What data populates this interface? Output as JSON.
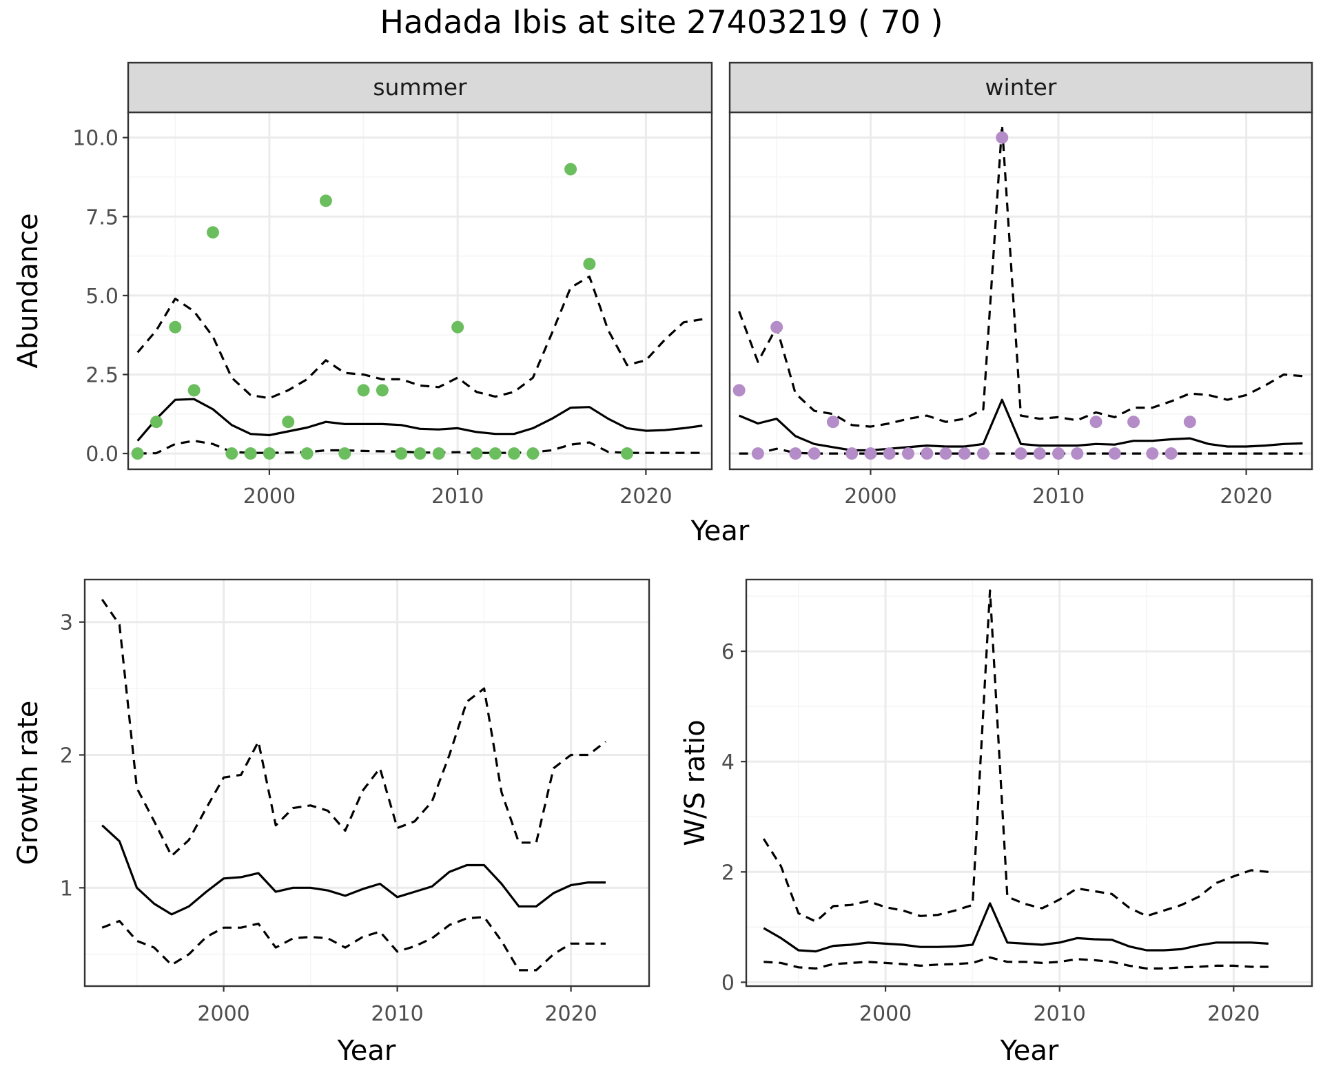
{
  "title": "Hadada Ibis at site 27403219 ( 70 )",
  "colors": {
    "summer_points": "#6BBE5D",
    "winter_points": "#B48CC8",
    "line": "#000000",
    "grid_major": "#EBEBEB",
    "grid_minor": "#F5F5F5",
    "strip_fill": "#D9D9D9",
    "panel_border": "#333333"
  },
  "chart_data": [
    {
      "type": "line",
      "panel": "summer",
      "strip_label": "summer",
      "xlabel": "Year",
      "ylabel": "Abundance",
      "xlim": [
        1992.5,
        2023.5
      ],
      "ylim": [
        -0.5,
        10.8
      ],
      "xticks": [
        2000,
        2010,
        2020
      ],
      "yticks": [
        0,
        2.5,
        5,
        7.5,
        10
      ],
      "ytick_labels": [
        "0.0",
        "2.5",
        "5.0",
        "7.5",
        "10.0"
      ],
      "grid": true,
      "line_styles": [
        "solid",
        "dashed",
        "dashed"
      ],
      "series": [
        {
          "style": "solid",
          "x": [
            1993,
            1994,
            1995,
            1996,
            1997,
            1998,
            1999,
            2000,
            2001,
            2002,
            2003,
            2004,
            2005,
            2006,
            2007,
            2008,
            2009,
            2010,
            2011,
            2012,
            2013,
            2014,
            2015,
            2016,
            2017,
            2018,
            2019,
            2020,
            2021,
            2022,
            2023
          ],
          "values": [
            0.4,
            1.1,
            1.7,
            1.72,
            1.4,
            0.9,
            0.62,
            0.58,
            0.7,
            0.82,
            1.0,
            0.93,
            0.93,
            0.93,
            0.9,
            0.78,
            0.76,
            0.8,
            0.68,
            0.62,
            0.62,
            0.8,
            1.1,
            1.45,
            1.47,
            1.1,
            0.8,
            0.72,
            0.74,
            0.8,
            0.88
          ]
        },
        {
          "style": "dashed",
          "x": [
            1993,
            1994,
            1995,
            1996,
            1997,
            1998,
            1999,
            2000,
            2001,
            2002,
            2003,
            2004,
            2005,
            2006,
            2007,
            2008,
            2009,
            2010,
            2011,
            2012,
            2013,
            2014,
            2015,
            2016,
            2017,
            2018,
            2019,
            2020,
            2021,
            2022,
            2023
          ],
          "values": [
            3.2,
            3.9,
            4.9,
            4.5,
            3.7,
            2.4,
            1.85,
            1.75,
            2.0,
            2.35,
            2.95,
            2.55,
            2.5,
            2.35,
            2.35,
            2.15,
            2.1,
            2.4,
            1.95,
            1.8,
            1.95,
            2.4,
            3.8,
            5.25,
            5.6,
            3.9,
            2.8,
            2.95,
            3.6,
            4.15,
            4.25
          ]
        },
        {
          "style": "dashed",
          "x": [
            1993,
            1994,
            1995,
            1996,
            1997,
            1998,
            1999,
            2000,
            2001,
            2002,
            2003,
            2004,
            2005,
            2006,
            2007,
            2008,
            2009,
            2010,
            2011,
            2012,
            2013,
            2014,
            2015,
            2016,
            2017,
            2018,
            2019,
            2020,
            2021,
            2022,
            2023
          ],
          "values": [
            0,
            0.01,
            0.3,
            0.4,
            0.3,
            0.05,
            0.02,
            0.02,
            0.03,
            0.04,
            0.1,
            0.1,
            0.08,
            0.07,
            0.06,
            0.03,
            0.03,
            0.04,
            0.02,
            0.02,
            0.02,
            0.04,
            0.1,
            0.28,
            0.35,
            0.05,
            0.02,
            0.02,
            0.02,
            0.02,
            0.02
          ]
        }
      ],
      "points": {
        "x": [
          1993,
          1994,
          1995,
          1996,
          1997,
          1998,
          1999,
          2000,
          2001,
          2002,
          2003,
          2004,
          2005,
          2006,
          2007,
          2008,
          2009,
          2010,
          2011,
          2012,
          2013,
          2014,
          2016,
          2017,
          2019
        ],
        "y": [
          0,
          1,
          4,
          2,
          7,
          0,
          0,
          0,
          1,
          0,
          8,
          0,
          2,
          2,
          0,
          0,
          0,
          4,
          0,
          0,
          0,
          0,
          9,
          6,
          0
        ]
      }
    },
    {
      "type": "line",
      "panel": "winter",
      "strip_label": "winter",
      "xlabel": "Year",
      "ylabel": "",
      "xlim": [
        1992.5,
        2023.5
      ],
      "ylim": [
        -0.5,
        10.8
      ],
      "xticks": [
        2000,
        2010,
        2020
      ],
      "yticks": [
        0,
        2.5,
        5,
        7.5,
        10
      ],
      "grid": true,
      "line_styles": [
        "solid",
        "dashed",
        "dashed"
      ],
      "series": [
        {
          "style": "solid",
          "x": [
            1993,
            1994,
            1995,
            1996,
            1997,
            1998,
            1999,
            2000,
            2001,
            2002,
            2003,
            2004,
            2005,
            2006,
            2007,
            2008,
            2009,
            2010,
            2011,
            2012,
            2013,
            2014,
            2015,
            2016,
            2017,
            2018,
            2019,
            2020,
            2021,
            2022,
            2023
          ],
          "values": [
            1.2,
            0.95,
            1.1,
            0.55,
            0.3,
            0.2,
            0.1,
            0.1,
            0.15,
            0.2,
            0.25,
            0.22,
            0.22,
            0.3,
            1.7,
            0.3,
            0.25,
            0.25,
            0.25,
            0.3,
            0.28,
            0.4,
            0.4,
            0.45,
            0.48,
            0.3,
            0.22,
            0.22,
            0.25,
            0.3,
            0.32
          ]
        },
        {
          "style": "dashed",
          "x": [
            1993,
            1994,
            1995,
            1996,
            1997,
            1998,
            1999,
            2000,
            2001,
            2002,
            2003,
            2004,
            2005,
            2006,
            2007,
            2008,
            2009,
            2010,
            2011,
            2012,
            2013,
            2014,
            2015,
            2016,
            2017,
            2018,
            2019,
            2020,
            2021,
            2022,
            2023
          ],
          "values": [
            4.5,
            2.9,
            4.0,
            1.9,
            1.35,
            1.25,
            0.9,
            0.85,
            0.95,
            1.1,
            1.2,
            1.0,
            1.1,
            1.4,
            10.4,
            1.2,
            1.1,
            1.15,
            1.05,
            1.3,
            1.15,
            1.45,
            1.45,
            1.65,
            1.9,
            1.85,
            1.7,
            1.85,
            2.15,
            2.5,
            2.45
          ]
        },
        {
          "style": "dashed",
          "x": [
            1993,
            1994,
            1995,
            1996,
            1997,
            1998,
            1999,
            2000,
            2001,
            2002,
            2003,
            2004,
            2005,
            2006,
            2007,
            2008,
            2009,
            2010,
            2011,
            2012,
            2013,
            2014,
            2015,
            2016,
            2017,
            2018,
            2019,
            2020,
            2021,
            2022,
            2023
          ],
          "values": [
            0,
            0,
            0.15,
            0.02,
            0,
            0,
            0,
            0,
            0,
            0,
            0,
            0,
            0,
            0,
            0,
            0,
            0,
            0,
            0,
            0,
            0,
            0,
            0,
            0,
            0,
            0,
            0,
            0,
            0,
            0,
            0
          ]
        }
      ],
      "points": {
        "x": [
          1993,
          1994,
          1995,
          1996,
          1997,
          1998,
          1999,
          2000,
          2001,
          2002,
          2003,
          2004,
          2005,
          2006,
          2007,
          2008,
          2009,
          2010,
          2011,
          2012,
          2013,
          2014,
          2015,
          2016,
          2017
        ],
        "y": [
          2,
          0,
          4,
          0,
          0,
          1,
          0,
          0,
          0,
          0,
          0,
          0,
          0,
          0,
          10,
          0,
          0,
          0,
          0,
          1,
          0,
          1,
          0,
          0,
          1
        ]
      }
    },
    {
      "type": "line",
      "panel": "growth",
      "xlabel": "Year",
      "ylabel": "Growth rate",
      "xlim": [
        1992.0,
        2024.5
      ],
      "ylim": [
        0.26,
        3.32
      ],
      "xticks": [
        2000,
        2010,
        2020
      ],
      "yticks": [
        1,
        2,
        3
      ],
      "ytick_labels": [
        "1",
        "2",
        "3"
      ],
      "grid": true,
      "line_styles": [
        "solid",
        "dashed",
        "dashed"
      ],
      "series": [
        {
          "style": "solid",
          "x": [
            1993,
            1994,
            1995,
            1996,
            1997,
            1998,
            1999,
            2000,
            2001,
            2002,
            2003,
            2004,
            2005,
            2006,
            2007,
            2008,
            2009,
            2010,
            2011,
            2012,
            2013,
            2014,
            2015,
            2016,
            2017,
            2018,
            2019,
            2020,
            2021,
            2022
          ],
          "values": [
            1.47,
            1.35,
            1.0,
            0.88,
            0.8,
            0.86,
            0.97,
            1.07,
            1.08,
            1.11,
            0.97,
            1.0,
            1.0,
            0.98,
            0.94,
            0.99,
            1.03,
            0.93,
            0.97,
            1.01,
            1.12,
            1.17,
            1.17,
            1.03,
            0.86,
            0.86,
            0.96,
            1.02,
            1.04,
            1.04
          ]
        },
        {
          "style": "dashed",
          "x": [
            1993,
            1994,
            1995,
            1996,
            1997,
            1998,
            1999,
            2000,
            2001,
            2002,
            2003,
            2004,
            2005,
            2006,
            2007,
            2008,
            2009,
            2010,
            2011,
            2012,
            2013,
            2014,
            2015,
            2016,
            2017,
            2018,
            2019,
            2020,
            2021,
            2022
          ],
          "values": [
            3.17,
            2.98,
            1.75,
            1.5,
            1.24,
            1.36,
            1.6,
            1.83,
            1.85,
            2.1,
            1.47,
            1.6,
            1.62,
            1.58,
            1.43,
            1.73,
            1.9,
            1.45,
            1.5,
            1.65,
            2.0,
            2.4,
            2.5,
            1.72,
            1.34,
            1.34,
            1.9,
            2.0,
            2.0,
            2.1
          ]
        },
        {
          "style": "dashed",
          "x": [
            1993,
            1994,
            1995,
            1996,
            1997,
            1998,
            1999,
            2000,
            2001,
            2002,
            2003,
            2004,
            2005,
            2006,
            2007,
            2008,
            2009,
            2010,
            2011,
            2012,
            2013,
            2014,
            2015,
            2016,
            2017,
            2018,
            2019,
            2020,
            2021,
            2022
          ],
          "values": [
            0.7,
            0.75,
            0.6,
            0.55,
            0.42,
            0.5,
            0.63,
            0.7,
            0.7,
            0.73,
            0.55,
            0.62,
            0.63,
            0.62,
            0.55,
            0.63,
            0.67,
            0.52,
            0.56,
            0.62,
            0.72,
            0.77,
            0.78,
            0.6,
            0.38,
            0.38,
            0.5,
            0.58,
            0.58,
            0.58
          ]
        }
      ]
    },
    {
      "type": "line",
      "panel": "ratio",
      "xlabel": "Year",
      "ylabel": "W/S ratio",
      "xlim": [
        1992.0,
        2024.5
      ],
      "ylim": [
        -0.07,
        7.3
      ],
      "xticks": [
        2000,
        2010,
        2020
      ],
      "yticks": [
        0,
        2,
        4,
        6
      ],
      "ytick_labels": [
        "0",
        "2",
        "4",
        "6"
      ],
      "grid": true,
      "line_styles": [
        "solid",
        "dashed",
        "dashed"
      ],
      "series": [
        {
          "style": "solid",
          "x": [
            1993,
            1994,
            1995,
            1996,
            1997,
            1998,
            1999,
            2000,
            2001,
            2002,
            2003,
            2004,
            2005,
            2006,
            2007,
            2008,
            2009,
            2010,
            2011,
            2012,
            2013,
            2014,
            2015,
            2016,
            2017,
            2018,
            2019,
            2020,
            2021,
            2022
          ],
          "values": [
            0.98,
            0.8,
            0.58,
            0.56,
            0.66,
            0.68,
            0.72,
            0.7,
            0.68,
            0.64,
            0.64,
            0.65,
            0.68,
            1.43,
            0.72,
            0.7,
            0.68,
            0.72,
            0.8,
            0.78,
            0.77,
            0.65,
            0.58,
            0.58,
            0.6,
            0.67,
            0.72,
            0.72,
            0.72,
            0.7
          ]
        },
        {
          "style": "dashed",
          "x": [
            1993,
            1994,
            1995,
            1996,
            1997,
            1998,
            1999,
            2000,
            2001,
            2002,
            2003,
            2004,
            2005,
            2006,
            2007,
            2008,
            2009,
            2010,
            2011,
            2012,
            2013,
            2014,
            2015,
            2016,
            2017,
            2018,
            2019,
            2020,
            2021,
            2022
          ],
          "values": [
            2.6,
            2.1,
            1.25,
            1.1,
            1.38,
            1.4,
            1.47,
            1.36,
            1.3,
            1.2,
            1.22,
            1.3,
            1.4,
            7.1,
            1.55,
            1.42,
            1.34,
            1.5,
            1.7,
            1.65,
            1.6,
            1.35,
            1.2,
            1.3,
            1.4,
            1.55,
            1.8,
            1.92,
            2.03,
            2.0
          ]
        },
        {
          "style": "dashed",
          "x": [
            1993,
            1994,
            1995,
            1996,
            1997,
            1998,
            1999,
            2000,
            2001,
            2002,
            2003,
            2004,
            2005,
            2006,
            2007,
            2008,
            2009,
            2010,
            2011,
            2012,
            2013,
            2014,
            2015,
            2016,
            2017,
            2018,
            2019,
            2020,
            2021,
            2022
          ],
          "values": [
            0.37,
            0.35,
            0.27,
            0.25,
            0.33,
            0.35,
            0.37,
            0.35,
            0.33,
            0.3,
            0.32,
            0.33,
            0.35,
            0.45,
            0.37,
            0.37,
            0.35,
            0.37,
            0.42,
            0.4,
            0.37,
            0.3,
            0.25,
            0.25,
            0.27,
            0.28,
            0.3,
            0.3,
            0.28,
            0.28
          ]
        }
      ]
    }
  ]
}
